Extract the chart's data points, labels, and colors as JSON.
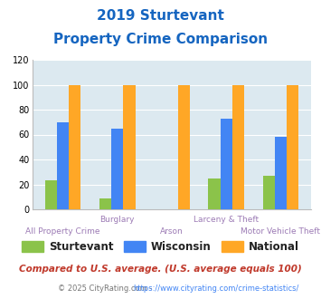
{
  "title_line1": "2019 Sturtevant",
  "title_line2": "Property Crime Comparison",
  "categories": [
    "All Property Crime",
    "Burglary",
    "Arson",
    "Larceny & Theft",
    "Motor Vehicle Theft"
  ],
  "sturtevant": [
    23,
    9,
    0,
    25,
    27
  ],
  "wisconsin": [
    70,
    65,
    0,
    73,
    58
  ],
  "national": [
    100,
    100,
    100,
    100,
    100
  ],
  "sturtevant_color": "#8bc34a",
  "wisconsin_color": "#4285f4",
  "national_color": "#ffa726",
  "title_color": "#1565c0",
  "bg_color": "#dce9f0",
  "ylim": [
    0,
    120
  ],
  "yticks": [
    0,
    20,
    40,
    60,
    80,
    100,
    120
  ],
  "bar_width": 0.22,
  "xlabel_color": "#9c7bb5",
  "legend_label_color": "#222222",
  "footnote1": "Compared to U.S. average. (U.S. average equals 100)",
  "footnote1_color": "#c0392b",
  "footnote2_prefix": "© 2025 CityRating.com - ",
  "footnote2_url": "https://www.cityrating.com/crime-statistics/",
  "footnote2_color": "#777777",
  "footnote2_url_color": "#4285f4"
}
